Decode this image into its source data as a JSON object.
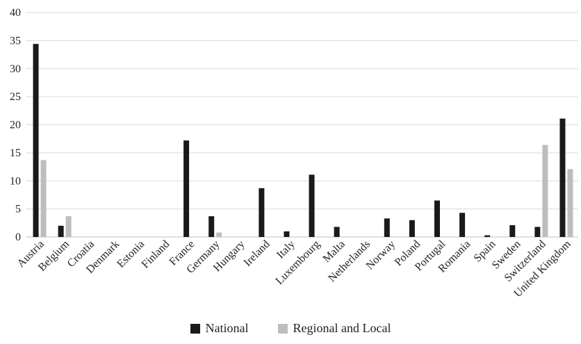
{
  "chart_data": {
    "type": "bar",
    "categories": [
      "Austria",
      "Belgium",
      "Croatia",
      "Denmark",
      "Estonia",
      "Finland",
      "France",
      "Germany",
      "Hungary",
      "Ireland",
      "Italy",
      "Luxembourg",
      "Malta",
      "Netherlands",
      "Norway",
      "Poland",
      "Portugal",
      "Romania",
      "Spain",
      "Sweden",
      "Switzerland",
      "United Kingdom"
    ],
    "series": [
      {
        "name": "National",
        "color": "#1a1a1a",
        "values": [
          34.4,
          2.0,
          0,
          0,
          0,
          0,
          17.2,
          3.7,
          0,
          8.7,
          1.0,
          11.1,
          1.8,
          0,
          3.3,
          3.0,
          6.5,
          4.3,
          0.3,
          2.1,
          1.8,
          21.1
        ]
      },
      {
        "name": "Regional and Local",
        "color": "#bdbdbd",
        "values": [
          13.7,
          3.7,
          0,
          0,
          0,
          0,
          0,
          0.8,
          0,
          0,
          0,
          0,
          0,
          0,
          0,
          0,
          0,
          0,
          0,
          0,
          16.4,
          12.1
        ]
      }
    ],
    "ylim": [
      0,
      40
    ],
    "yticks": [
      0,
      5,
      10,
      15,
      20,
      25,
      30,
      35,
      40
    ],
    "grid": true,
    "legend_position": "bottom",
    "title": "",
    "xlabel": "",
    "ylabel": ""
  }
}
